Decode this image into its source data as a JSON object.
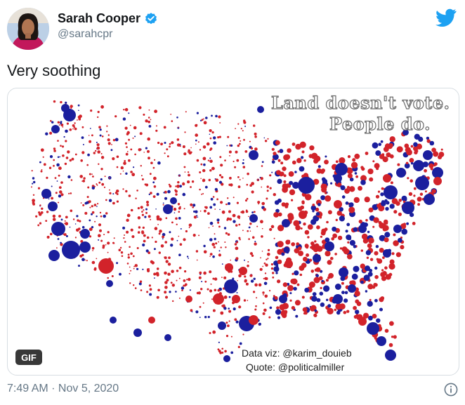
{
  "author": {
    "display_name": "Sarah Cooper",
    "handle": "@sarahcpr",
    "verified": true,
    "avatar_icon": "profile-photo"
  },
  "tweet": {
    "text": "Very soothing",
    "timestamp": "7:49 AM · Nov 5, 2020"
  },
  "media": {
    "type": "GIF",
    "badge": "GIF",
    "caption_line_1": "Land doesn't vote.",
    "caption_line_2": "People do.",
    "credit_line_1": "Data viz: @karim_douieb",
    "credit_line_2": "Quote: @politicalmiller"
  },
  "colors": {
    "brand_blue": "#1da1f2",
    "dot_red": "#d2232a",
    "dot_blue": "#1b1f9e",
    "text_secondary": "#657786"
  },
  "icons": {
    "brand": "twitter-bird-icon",
    "verified": "verified-badge-icon",
    "info": "info-icon"
  }
}
